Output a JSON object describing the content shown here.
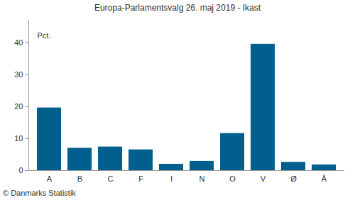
{
  "chart_data": {
    "type": "bar",
    "title": "Europa-Parlamentsvalg 26. maj 2019 - Ikast",
    "y_label": "Pct.",
    "source": "© Danmarks Statistik",
    "categories": [
      "A",
      "B",
      "C",
      "F",
      "I",
      "N",
      "O",
      "V",
      "Ø",
      "Å"
    ],
    "values": [
      19.6,
      7.0,
      7.4,
      6.5,
      2.0,
      2.9,
      11.6,
      39.5,
      2.6,
      1.8
    ],
    "color": "#005f8d",
    "ylim": [
      0,
      47
    ],
    "yticks": [
      0,
      10,
      20,
      30,
      40
    ],
    "grid": false
  }
}
